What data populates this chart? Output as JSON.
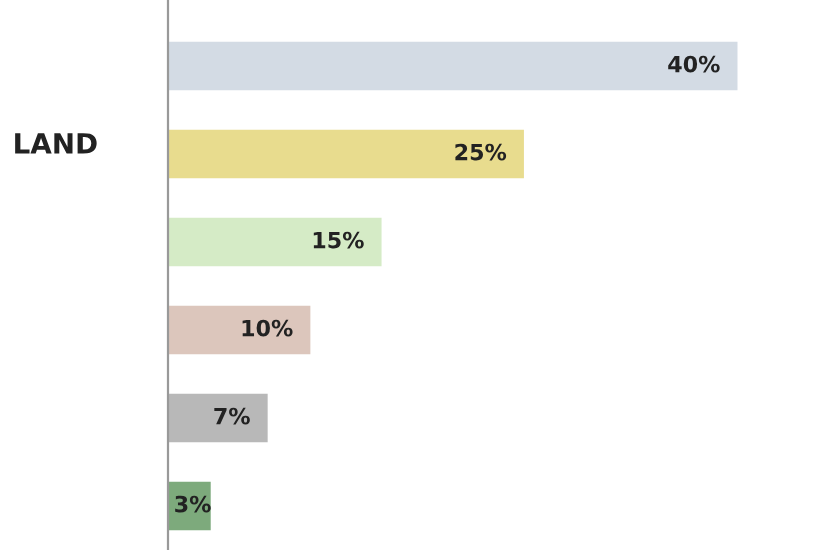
{
  "chart_data": {
    "type": "bar",
    "orientation": "horizontal",
    "categories": [
      null,
      null,
      null,
      null,
      null,
      null
    ],
    "values": [
      40,
      25,
      15,
      10,
      7,
      3
    ],
    "value_labels": [
      "40%",
      "25%",
      "15%",
      "10%",
      "7%",
      "3%"
    ],
    "colors": [
      "#d3dbe4",
      "#e8dc8e",
      "#d5ebc6",
      "#dcc6bc",
      "#b8b8b8",
      "#7daa7c"
    ],
    "annotations": [
      "LAND"
    ],
    "grid": false,
    "legend": false
  }
}
